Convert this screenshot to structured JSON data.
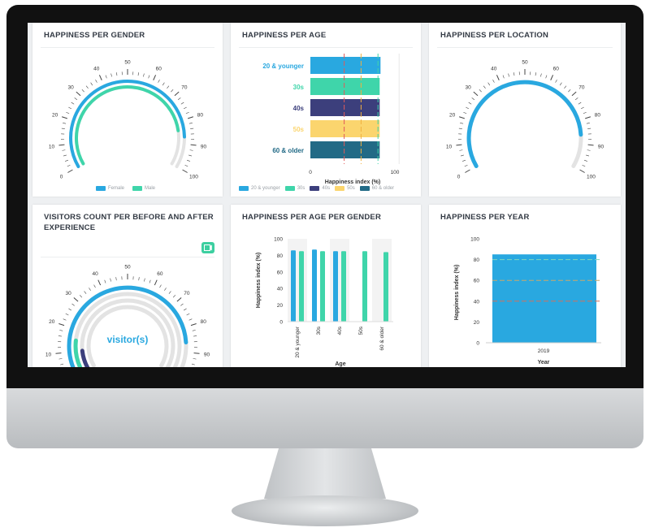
{
  "gauge_ticks": [
    "0",
    "10",
    "20",
    "30",
    "40",
    "50",
    "60",
    "70",
    "80",
    "90",
    "100"
  ],
  "colors": {
    "blue": "#29a8e0",
    "teal": "#3fd5aa",
    "navy": "#3c3f7c",
    "yellow": "#fbd56e",
    "darkteal": "#226a86",
    "grey_band": "#e3e3e3"
  },
  "cards": {
    "gender": {
      "title": "HAPPINESS PER GENDER",
      "legend": [
        "Female",
        "Male"
      ],
      "series": [
        {
          "name": "Female",
          "value": 87,
          "color_key": "blue"
        },
        {
          "name": "Male",
          "value": 84,
          "color_key": "teal"
        }
      ]
    },
    "age": {
      "title": "HAPPINESS PER AGE",
      "xlabel": "Happiness index (%)",
      "axis_ticks": [
        "0",
        "100"
      ],
      "categories": [
        "20 & younger",
        "30s",
        "40s",
        "50s",
        "60 & older"
      ],
      "legend": [
        "20 & younger",
        "30s",
        "40s",
        "50s",
        "60 & older"
      ]
    },
    "location": {
      "title": "HAPPINESS PER LOCATION",
      "value": 86
    },
    "visitors": {
      "title_line1": "VISITORS COUNT PER BEFORE AND AFTER",
      "title_line2": "EXPERIENCE",
      "center_label": "visitor(s)",
      "toggle_icon": "presentation-icon"
    },
    "age_gender": {
      "title": "HAPPINESS PER AGE PER GENDER",
      "ylabel": "Happiness index (%)",
      "xlabel": "Age",
      "yticks": [
        "0",
        "20",
        "40",
        "60",
        "80",
        "100"
      ],
      "categories": [
        "20 & younger",
        "30s",
        "40s",
        "50s",
        "60 & older"
      ]
    },
    "year": {
      "title": "HAPPINESS PER YEAR",
      "ylabel": "Happiness index (%)",
      "xlabel": "Year",
      "yticks": [
        "0",
        "20",
        "40",
        "60",
        "80",
        "100"
      ],
      "category": "2019"
    }
  },
  "chart_data": [
    {
      "type": "gauge",
      "title": "HAPPINESS PER GENDER",
      "range": [
        0,
        100
      ],
      "series": [
        {
          "name": "Female",
          "values": [
            87
          ]
        },
        {
          "name": "Male",
          "values": [
            84
          ]
        }
      ]
    },
    {
      "type": "bar",
      "title": "HAPPINESS PER AGE",
      "orientation": "horizontal",
      "categories": [
        "20 & younger",
        "30s",
        "40s",
        "50s",
        "60 & older"
      ],
      "values": [
        83,
        82,
        82,
        82,
        82
      ],
      "reference_lines": [
        40,
        60,
        80
      ],
      "xlabel": "Happiness index (%)",
      "xlim": [
        0,
        100
      ]
    },
    {
      "type": "gauge",
      "title": "HAPPINESS PER LOCATION",
      "range": [
        0,
        100
      ],
      "values": [
        86
      ]
    },
    {
      "type": "gauge",
      "title": "VISITORS COUNT PER BEFORE AND AFTER EXPERIENCE",
      "range": [
        0,
        100
      ],
      "values": [
        86,
        15,
        10
      ]
    },
    {
      "type": "bar",
      "title": "HAPPINESS PER AGE PER GENDER",
      "categories": [
        "20 & younger",
        "30s",
        "40s",
        "50s",
        "60 & older"
      ],
      "series": [
        {
          "values": [
            86,
            87,
            85,
            null,
            null
          ]
        },
        {
          "values": [
            85,
            85,
            85,
            85,
            84
          ]
        }
      ],
      "xlabel": "Age",
      "ylabel": "Happiness index (%)",
      "ylim": [
        0,
        100
      ]
    },
    {
      "type": "bar",
      "title": "HAPPINESS PER YEAR",
      "categories": [
        "2019"
      ],
      "values": [
        85
      ],
      "reference_lines": [
        40,
        60,
        80
      ],
      "xlabel": "Year",
      "ylabel": "Happiness index (%)",
      "ylim": [
        0,
        100
      ]
    }
  ]
}
